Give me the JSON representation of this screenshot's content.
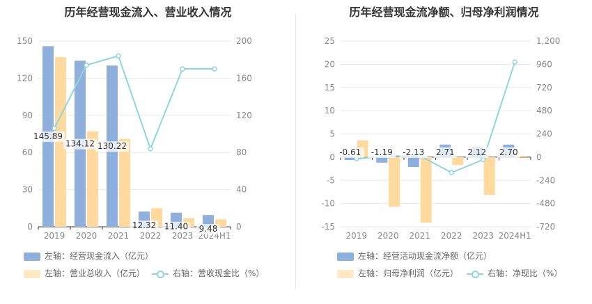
{
  "chart_data": [
    {
      "type": "bar",
      "title": "历年经营现金流入、营业收入情况",
      "categories": [
        "2019",
        "2020",
        "2021",
        "2022",
        "2023",
        "2024H1"
      ],
      "y_left_ticks": [
        "0",
        "30",
        "60",
        "90",
        "120",
        "150"
      ],
      "y_left_range": [
        0,
        150
      ],
      "y_right_ticks": [
        "0",
        "40",
        "80",
        "120",
        "160",
        "200"
      ],
      "y_right_range": [
        0,
        200
      ],
      "series": [
        {
          "name": "左轴：经营现金流入（亿元）",
          "axis": "left",
          "kind": "bar",
          "color": "#8fb0dd",
          "values": [
            145.89,
            134.12,
            130.22,
            12.32,
            11.4,
            9.48
          ],
          "labels": [
            "145.89",
            "134.12",
            "130.22",
            "12.32",
            "11.40",
            "9.48"
          ]
        },
        {
          "name": "左轴：营业总收入（亿元）",
          "axis": "left",
          "kind": "bar",
          "color": "#ffd99e",
          "values": [
            137,
            77,
            71,
            15,
            7,
            6
          ]
        },
        {
          "name": "右轴：营收现金比（%）",
          "axis": "right",
          "kind": "line",
          "color": "#8fd6dc",
          "values": [
            106,
            174,
            184,
            84,
            170,
            170
          ]
        }
      ],
      "grid": true
    },
    {
      "type": "bar",
      "title": "历年经营现金流净额、归母净利润情况",
      "categories": [
        "2019",
        "2020",
        "2021",
        "2022",
        "2023",
        "2024H1"
      ],
      "y_left_ticks": [
        "-15",
        "-10",
        "-5",
        "0",
        "5",
        "10",
        "15",
        "20",
        "25"
      ],
      "y_left_range": [
        -15,
        25
      ],
      "y_right_ticks": [
        "-720",
        "-480",
        "-240",
        "0",
        "240",
        "480",
        "720",
        "960",
        "1,200"
      ],
      "y_right_range": [
        -720,
        1200
      ],
      "series": [
        {
          "name": "左轴：经营活动现金流净额（亿元）",
          "axis": "left",
          "kind": "bar",
          "color": "#8fb0dd",
          "values": [
            -0.61,
            -1.19,
            -2.13,
            2.71,
            2.12,
            2.7
          ],
          "labels": [
            "-0.61",
            "-1.19",
            "-2.13",
            "2.71",
            "2.12",
            "2.70"
          ]
        },
        {
          "name": "左轴：归母净利润（亿元）",
          "axis": "left",
          "kind": "bar",
          "color": "#ffd99e",
          "values": [
            3.6,
            -10.7,
            -14.1,
            -1.7,
            -8.1,
            0.3
          ]
        },
        {
          "name": "右轴：净现比（%）",
          "axis": "right",
          "kind": "line",
          "color": "#8fd6dc",
          "values": [
            -17,
            11,
            15,
            -160,
            -26,
            984
          ]
        }
      ],
      "grid": true
    }
  ]
}
